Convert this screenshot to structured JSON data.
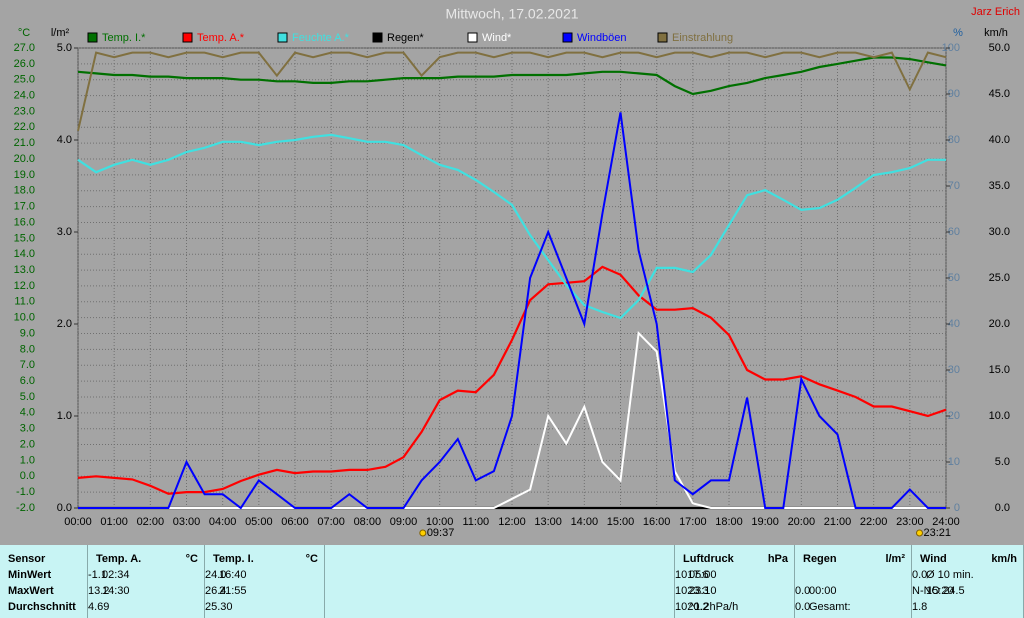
{
  "chart_data": {
    "type": "line",
    "title": "Mittwoch, 17.02.2021",
    "author": "Jarz Erich",
    "units": {
      "y": "°C",
      "y2": "l/m²",
      "y3": "%",
      "y4": "km/h"
    },
    "x": [
      0,
      0.5,
      1,
      1.5,
      2,
      2.5,
      3,
      3.5,
      4,
      4.5,
      5,
      5.5,
      6,
      6.5,
      7,
      7.5,
      8,
      8.5,
      9,
      9.5,
      10,
      10.5,
      11,
      11.5,
      12,
      12.5,
      13,
      13.5,
      14,
      14.5,
      15,
      15.5,
      16,
      16.5,
      17,
      17.5,
      18,
      18.5,
      19,
      19.5,
      20,
      20.5,
      21,
      21.5,
      22,
      22.5,
      23,
      23.5,
      24
    ],
    "xlim": [
      0,
      24
    ],
    "xticks": [
      {
        "value": 0,
        "label": "00:00"
      },
      {
        "value": 1,
        "label": "01:00"
      },
      {
        "value": 2,
        "label": "02:00"
      },
      {
        "value": 3,
        "label": "03:00"
      },
      {
        "value": 4,
        "label": "04:00"
      },
      {
        "value": 5,
        "label": "05:00"
      },
      {
        "value": 6,
        "label": "06:00"
      },
      {
        "value": 7,
        "label": "07:00"
      },
      {
        "value": 8,
        "label": "08:00"
      },
      {
        "value": 9,
        "label": "09:00"
      },
      {
        "value": 10,
        "label": "10:00"
      },
      {
        "value": 11,
        "label": "11:00"
      },
      {
        "value": 12,
        "label": "12:00"
      },
      {
        "value": 13,
        "label": "13:00"
      },
      {
        "value": 14,
        "label": "14:00"
      },
      {
        "value": 15,
        "label": "15:00"
      },
      {
        "value": 16,
        "label": "16:00"
      },
      {
        "value": 17,
        "label": "17:00"
      },
      {
        "value": 18,
        "label": "18:00"
      },
      {
        "value": 19,
        "label": "19:00"
      },
      {
        "value": 20,
        "label": "20:00"
      },
      {
        "value": 21,
        "label": "21:00"
      },
      {
        "value": 22,
        "label": "22:00"
      },
      {
        "value": 23,
        "label": "23:00"
      },
      {
        "value": 24,
        "label": "24:00"
      }
    ],
    "ylim": [
      -2,
      27
    ],
    "yticks": [
      {
        "value": -2,
        "label": "-2.0"
      },
      {
        "value": -1,
        "label": "-1.0"
      },
      {
        "value": 0,
        "label": "0.0"
      },
      {
        "value": 1,
        "label": "1.0"
      },
      {
        "value": 2,
        "label": "2.0"
      },
      {
        "value": 3,
        "label": "3.0"
      },
      {
        "value": 4,
        "label": "4.0"
      },
      {
        "value": 5,
        "label": "5.0"
      },
      {
        "value": 6,
        "label": "6.0"
      },
      {
        "value": 7,
        "label": "7.0"
      },
      {
        "value": 8,
        "label": "8.0"
      },
      {
        "value": 9,
        "label": "9.0"
      },
      {
        "value": 10,
        "label": "10.0"
      },
      {
        "value": 11,
        "label": "11.0"
      },
      {
        "value": 12,
        "label": "12.0"
      },
      {
        "value": 13,
        "label": "13.0"
      },
      {
        "value": 14,
        "label": "14.0"
      },
      {
        "value": 15,
        "label": "15.0"
      },
      {
        "value": 16,
        "label": "16.0"
      },
      {
        "value": 17,
        "label": "17.0"
      },
      {
        "value": 18,
        "label": "18.0"
      },
      {
        "value": 19,
        "label": "19.0"
      },
      {
        "value": 20,
        "label": "20.0"
      },
      {
        "value": 21,
        "label": "21.0"
      },
      {
        "value": 22,
        "label": "22.0"
      },
      {
        "value": 23,
        "label": "23.0"
      },
      {
        "value": 24,
        "label": "24.0"
      },
      {
        "value": 25,
        "label": "25.0"
      },
      {
        "value": 26,
        "label": "26.0"
      },
      {
        "value": 27,
        "label": "27.0"
      }
    ],
    "y2lim": [
      0,
      5
    ],
    "y2ticks": [
      {
        "value": 0,
        "label": "0.0"
      },
      {
        "value": 1,
        "label": "1.0"
      },
      {
        "value": 2,
        "label": "2.0"
      },
      {
        "value": 3,
        "label": "3.0"
      },
      {
        "value": 4,
        "label": "4.0"
      },
      {
        "value": 5,
        "label": "5.0"
      }
    ],
    "y3lim": [
      0,
      100
    ],
    "y3ticks": [
      0,
      10,
      20,
      30,
      40,
      50,
      60,
      70,
      80,
      90,
      100
    ],
    "y4lim": [
      0,
      50
    ],
    "y4ticks": [
      {
        "value": 0,
        "label": "0.0"
      },
      {
        "value": 5,
        "label": "5.0"
      },
      {
        "value": 10,
        "label": "10.0"
      },
      {
        "value": 15,
        "label": "15.0"
      },
      {
        "value": 20,
        "label": "20.0"
      },
      {
        "value": 25,
        "label": "25.0"
      },
      {
        "value": 30,
        "label": "30.0"
      },
      {
        "value": 35,
        "label": "35.0"
      },
      {
        "value": 40,
        "label": "40.0"
      },
      {
        "value": 45,
        "label": "45.0"
      },
      {
        "value": 50,
        "label": "50.0"
      }
    ],
    "grid": true,
    "series": [
      {
        "name": "Temp. I.*",
        "color": "#007000",
        "axis": "y",
        "values": [
          25.5,
          25.4,
          25.3,
          25.3,
          25.2,
          25.2,
          25.1,
          25.1,
          25.1,
          25.0,
          25.0,
          24.9,
          24.9,
          24.8,
          24.8,
          24.9,
          24.9,
          25.0,
          25.1,
          25.1,
          25.1,
          25.2,
          25.2,
          25.2,
          25.3,
          25.3,
          25.3,
          25.3,
          25.4,
          25.5,
          25.5,
          25.4,
          25.3,
          24.6,
          24.1,
          24.3,
          24.6,
          24.8,
          25.1,
          25.3,
          25.5,
          25.8,
          26.0,
          26.2,
          26.4,
          26.4,
          26.3,
          26.1,
          25.9
        ]
      },
      {
        "name": "Temp. A.*",
        "color": "#ff0000",
        "axis": "y",
        "values": [
          -0.1,
          0.0,
          -0.1,
          -0.2,
          -0.6,
          -1.1,
          -1.0,
          -1.0,
          -0.8,
          -0.3,
          0.1,
          0.4,
          0.2,
          0.3,
          0.3,
          0.4,
          0.4,
          0.6,
          1.2,
          2.8,
          4.8,
          5.4,
          5.3,
          6.4,
          8.6,
          11.1,
          12.1,
          12.2,
          12.3,
          13.2,
          12.7,
          11.4,
          10.5,
          10.5,
          10.6,
          10.0,
          8.9,
          6.7,
          6.1,
          6.1,
          6.3,
          5.8,
          5.4,
          5.0,
          4.4,
          4.4,
          4.1,
          3.8,
          4.2
        ]
      },
      {
        "name": "Feuchte A.*",
        "color": "#40e0e0",
        "axis": "y3",
        "values": [
          75.7,
          73,
          74.6,
          75.7,
          74.6,
          75.7,
          77.4,
          78.3,
          79.6,
          79.6,
          78.9,
          79.6,
          80,
          80.7,
          81.1,
          80.4,
          79.6,
          79.6,
          78.9,
          76.7,
          74.6,
          73.5,
          71.3,
          68.7,
          65.9,
          59.3,
          53.9,
          48.5,
          44.1,
          42.6,
          41.3,
          45.2,
          52.2,
          52.2,
          51.3,
          55,
          61.5,
          68,
          69.1,
          67,
          64.8,
          65.2,
          67,
          69.6,
          72.4,
          73,
          73.9,
          75.7,
          75.7
        ]
      },
      {
        "name": "Regen*",
        "color": "#000000",
        "axis": "y2",
        "values": [
          0,
          0,
          0,
          0,
          0,
          0,
          0,
          0,
          0,
          0,
          0,
          0,
          0,
          0,
          0,
          0,
          0,
          0,
          0,
          0,
          0,
          0,
          0,
          0,
          0,
          0,
          0,
          0,
          0,
          0,
          0,
          0,
          0,
          0,
          0,
          0,
          0,
          0,
          0,
          0,
          0,
          0,
          0,
          0,
          0,
          0,
          0,
          0,
          0
        ]
      },
      {
        "name": "Wind*",
        "color": "#ffffff",
        "axis": "y4",
        "values": [
          0,
          0,
          0,
          0,
          0,
          0,
          0,
          0,
          0,
          0,
          0,
          0,
          0,
          0,
          0,
          0,
          0,
          0,
          0,
          0,
          0,
          0,
          0,
          0,
          1,
          2,
          10,
          7,
          11,
          5,
          3,
          19,
          17,
          4,
          0.5,
          0,
          0,
          0,
          0,
          0,
          0,
          0,
          0,
          0,
          0,
          0,
          0,
          0,
          0
        ]
      },
      {
        "name": "Windböen",
        "color": "#0000ff",
        "axis": "y4",
        "values": [
          0,
          0,
          0,
          0,
          0,
          0,
          5,
          1.5,
          1.5,
          0,
          3,
          1.5,
          0,
          0,
          0,
          1.5,
          0,
          0,
          0,
          3,
          5,
          7.5,
          3,
          4,
          10,
          25,
          30,
          25,
          20,
          32,
          43,
          28,
          20,
          3,
          1.5,
          3,
          3,
          12,
          0,
          0,
          14,
          10,
          8,
          0,
          0,
          0,
          2,
          0,
          0
        ]
      },
      {
        "name": "Einstrahlung",
        "color": "#807040",
        "axis": "y3",
        "values": [
          82,
          99,
          98,
          99,
          99,
          98,
          99,
          99,
          98,
          99,
          99,
          94,
          99,
          98,
          99,
          99,
          98,
          99,
          99,
          94,
          98,
          99,
          99,
          98,
          99,
          99,
          98,
          99,
          99,
          98,
          99,
          99,
          98,
          99,
          99,
          98,
          99,
          99,
          98,
          99,
          99,
          98,
          99,
          99,
          98,
          99,
          91,
          99,
          98
        ]
      }
    ],
    "markers": [
      {
        "x": 9.617,
        "label": "09:37"
      },
      {
        "x": 23.35,
        "label": "23:21"
      }
    ]
  },
  "table": {
    "sections": [
      {
        "header": [
          "Sensor"
        ],
        "rows": [
          [
            "MinWert"
          ],
          [
            "MaxWert"
          ],
          [
            "Durchschnitt"
          ]
        ]
      },
      {
        "header": [
          "Temp. A.",
          "°C"
        ],
        "rows": [
          [
            "02:34",
            "-1.1"
          ],
          [
            "14:30",
            "13.2"
          ],
          [
            null,
            "4.69"
          ]
        ]
      },
      {
        "header": [
          "Temp. I.",
          "°C"
        ],
        "rows": [
          [
            "16:40",
            "24.0"
          ],
          [
            "21:55",
            "26.4"
          ],
          [
            null,
            "25.30"
          ]
        ]
      },
      {
        "header": [],
        "rows": []
      },
      {
        "header": [
          "Luftdruck",
          "hPa"
        ],
        "rows": [
          [
            "05:00",
            "1017.6"
          ],
          [
            "23:10",
            "1023.3"
          ],
          [
            "^1.2hPa/h",
            "1020.2"
          ]
        ]
      },
      {
        "header": [
          "Regen",
          "l/m²"
        ],
        "rows": [
          [
            null,
            null
          ],
          [
            "00:00",
            "0.0"
          ],
          [
            "Gesamt:",
            "0.0"
          ]
        ]
      },
      {
        "header": [
          "Wind",
          "km/h"
        ],
        "rows": [
          [
            "Ø 10 min.",
            "0.0"
          ],
          [
            "15:20",
            "N-NO 24.5"
          ],
          [
            null,
            "1.8"
          ]
        ]
      }
    ]
  }
}
